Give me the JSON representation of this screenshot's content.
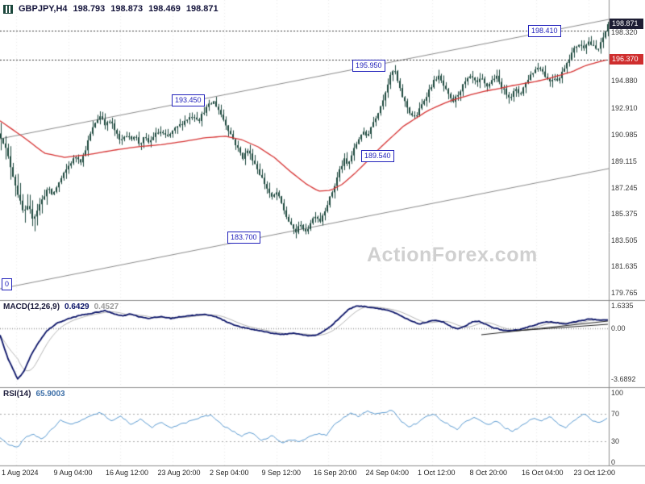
{
  "header": {
    "symbol": "GBPJPY,H4",
    "values": [
      "198.793",
      "198.873",
      "198.469",
      "198.871"
    ]
  },
  "watermark": "ActionForex.com",
  "price_axis": {
    "current_price": "198.871",
    "ma_price": "196.370"
  },
  "indicators": {
    "macd": {
      "label": "MACD(12,26,9)",
      "values": [
        "0.6429",
        "0.4527"
      ],
      "axis": [
        "1.6335",
        "0.00",
        "-3.6892"
      ]
    },
    "rsi": {
      "label": "RSI(14)",
      "value": "65.9003",
      "axis": [
        "100",
        "70",
        "30",
        "0"
      ]
    }
  },
  "time_axis": {
    "labels": [
      "1 Aug 2024",
      "9 Aug 04:00",
      "16 Aug 12:00",
      "23 Aug 20:00",
      "2 Sep 04:00",
      "9 Sep 12:00",
      "16 Sep 20:00",
      "24 Sep 04:00",
      "1 Oct 12:00",
      "8 Oct 20:00",
      "16 Oct 04:00",
      "23 Oct 12:00"
    ]
  },
  "colors": {
    "candle": "#1b473c",
    "ma_line": "#d63333",
    "macd_main": "#0b1468",
    "macd_signal": "#b5b5b5",
    "rsi_line": "#5c9bd1",
    "annotation_blue": "#2222bb",
    "current_price_box_bg": "#1d1d33",
    "ma_price_box_bg": "#cf2e2e",
    "watermark": "#c8c8c8",
    "channel": "#8a8a8a"
  },
  "chart_data": {
    "type": "candlestick",
    "title": "GBPJPY H4 with MACD(12,26,9) and RSI(14)",
    "symbol": "GBPJPY",
    "timeframe": "H4",
    "ohlc_current": {
      "open": 198.793,
      "high": 198.873,
      "low": 198.469,
      "close": 198.871
    },
    "last_close": 198.871,
    "ylim": [
      179.0,
      199.3
    ],
    "price_axis": {
      "grid_labels": [
        "198.320",
        "194.880",
        "192.910",
        "190.985",
        "189.115",
        "187.245",
        "185.375",
        "183.505",
        "181.635",
        "179.765"
      ]
    },
    "level_lines": [
      198.41,
      196.37
    ],
    "annotations": [
      {
        "text": "198.410",
        "x": 655,
        "price": 198.41
      },
      {
        "text": "195.950",
        "x": 437,
        "price": 195.95
      },
      {
        "text": "193.450",
        "x": 213,
        "price": 193.45
      },
      {
        "text": "189.540",
        "x": 448,
        "price": 189.54
      },
      {
        "text": "183.700",
        "x": 282,
        "price": 183.7
      },
      {
        "text": "0",
        "x": 2,
        "price": 180.38
      }
    ],
    "channel": {
      "upper_start_price": 190.72,
      "upper_end_price": 199.21,
      "lower_start_price": 180.05,
      "lower_end_price": 188.6
    },
    "close_path": [
      [
        0,
        191.1
      ],
      [
        6,
        190.4
      ],
      [
        12,
        189.2
      ],
      [
        18,
        187.9
      ],
      [
        24,
        186.6
      ],
      [
        30,
        185.4
      ],
      [
        36,
        185.9
      ],
      [
        42,
        185.0
      ],
      [
        48,
        185.8
      ],
      [
        54,
        186.5
      ],
      [
        60,
        187.2
      ],
      [
        66,
        186.7
      ],
      [
        72,
        187.4
      ],
      [
        80,
        188.2
      ],
      [
        88,
        189.0
      ],
      [
        96,
        189.5
      ],
      [
        102,
        189.1
      ],
      [
        108,
        190.2
      ],
      [
        114,
        191.2
      ],
      [
        120,
        192.0
      ],
      [
        126,
        192.4
      ],
      [
        132,
        191.7
      ],
      [
        138,
        192.0
      ],
      [
        144,
        191.2
      ],
      [
        150,
        190.5
      ],
      [
        156,
        191.1
      ],
      [
        162,
        190.7
      ],
      [
        168,
        191.0
      ],
      [
        174,
        190.3
      ],
      [
        180,
        190.8
      ],
      [
        186,
        190.4
      ],
      [
        192,
        191.0
      ],
      [
        200,
        191.2
      ],
      [
        208,
        190.8
      ],
      [
        216,
        191.3
      ],
      [
        224,
        191.7
      ],
      [
        232,
        192.1
      ],
      [
        240,
        192.4
      ],
      [
        248,
        192.1
      ],
      [
        254,
        192.7
      ],
      [
        260,
        193.1
      ],
      [
        266,
        193.35
      ],
      [
        272,
        192.8
      ],
      [
        278,
        192.1
      ],
      [
        284,
        191.4
      ],
      [
        290,
        190.7
      ],
      [
        296,
        190.0
      ],
      [
        302,
        189.4
      ],
      [
        308,
        189.9
      ],
      [
        314,
        189.3
      ],
      [
        320,
        188.6
      ],
      [
        326,
        187.9
      ],
      [
        332,
        187.2
      ],
      [
        338,
        186.5
      ],
      [
        344,
        186.9
      ],
      [
        350,
        186.1
      ],
      [
        356,
        185.2
      ],
      [
        362,
        184.5
      ],
      [
        368,
        184.1
      ],
      [
        374,
        184.7
      ],
      [
        380,
        184.0
      ],
      [
        386,
        184.8
      ],
      [
        392,
        185.3
      ],
      [
        398,
        184.9
      ],
      [
        404,
        185.7
      ],
      [
        410,
        186.5
      ],
      [
        416,
        187.4
      ],
      [
        422,
        188.5
      ],
      [
        428,
        189.2
      ],
      [
        432,
        188.8
      ],
      [
        438,
        189.7
      ],
      [
        444,
        190.5
      ],
      [
        450,
        191.2
      ],
      [
        456,
        190.9
      ],
      [
        462,
        191.7
      ],
      [
        468,
        192.4
      ],
      [
        474,
        193.2
      ],
      [
        480,
        194.3
      ],
      [
        486,
        195.3
      ],
      [
        490,
        195.7
      ],
      [
        494,
        194.8
      ],
      [
        498,
        194.0
      ],
      [
        504,
        193.2
      ],
      [
        510,
        192.5
      ],
      [
        516,
        192.2
      ],
      [
        522,
        192.9
      ],
      [
        528,
        193.6
      ],
      [
        534,
        194.3
      ],
      [
        540,
        194.9
      ],
      [
        544,
        195.2
      ],
      [
        550,
        194.6
      ],
      [
        556,
        193.9
      ],
      [
        562,
        193.3
      ],
      [
        568,
        193.8
      ],
      [
        574,
        194.4
      ],
      [
        580,
        194.9
      ],
      [
        586,
        195.1
      ],
      [
        592,
        194.6
      ],
      [
        598,
        195.0
      ],
      [
        604,
        194.4
      ],
      [
        610,
        194.8
      ],
      [
        616,
        195.2
      ],
      [
        622,
        194.5
      ],
      [
        628,
        194.0
      ],
      [
        634,
        193.7
      ],
      [
        640,
        194.2
      ],
      [
        646,
        193.9
      ],
      [
        652,
        194.6
      ],
      [
        658,
        195.2
      ],
      [
        664,
        195.6
      ],
      [
        670,
        195.9
      ],
      [
        676,
        195.3
      ],
      [
        682,
        194.8
      ],
      [
        688,
        195.1
      ],
      [
        694,
        194.9
      ],
      [
        700,
        195.7
      ],
      [
        706,
        196.4
      ],
      [
        712,
        197.0
      ],
      [
        718,
        197.5
      ],
      [
        724,
        197.2
      ],
      [
        730,
        197.7
      ],
      [
        736,
        197.3
      ],
      [
        742,
        197.0
      ],
      [
        747,
        197.6
      ],
      [
        751,
        198.2
      ],
      [
        755,
        198.87
      ]
    ],
    "ma_path": [
      [
        0,
        192.0
      ],
      [
        30,
        190.8
      ],
      [
        55,
        189.7
      ],
      [
        80,
        189.4
      ],
      [
        110,
        189.6
      ],
      [
        140,
        189.9
      ],
      [
        170,
        190.15
      ],
      [
        200,
        190.3
      ],
      [
        230,
        190.55
      ],
      [
        255,
        190.8
      ],
      [
        280,
        190.9
      ],
      [
        300,
        190.65
      ],
      [
        320,
        190.15
      ],
      [
        340,
        189.4
      ],
      [
        360,
        188.4
      ],
      [
        380,
        187.5
      ],
      [
        395,
        187.0
      ],
      [
        410,
        187.05
      ],
      [
        425,
        187.5
      ],
      [
        440,
        188.25
      ],
      [
        455,
        189.1
      ],
      [
        470,
        190.0
      ],
      [
        485,
        190.8
      ],
      [
        500,
        191.6
      ],
      [
        515,
        192.15
      ],
      [
        530,
        192.7
      ],
      [
        545,
        193.1
      ],
      [
        560,
        193.45
      ],
      [
        575,
        193.7
      ],
      [
        590,
        193.95
      ],
      [
        605,
        194.15
      ],
      [
        620,
        194.3
      ],
      [
        635,
        194.5
      ],
      [
        650,
        194.65
      ],
      [
        665,
        194.8
      ],
      [
        680,
        195.0
      ],
      [
        695,
        195.25
      ],
      [
        710,
        195.5
      ],
      [
        725,
        195.9
      ],
      [
        740,
        196.15
      ],
      [
        755,
        196.37
      ]
    ],
    "macd": {
      "path": [
        [
          0,
          -0.5
        ],
        [
          10,
          -2.2
        ],
        [
          22,
          -3.69
        ],
        [
          30,
          -3.1
        ],
        [
          38,
          -2.0
        ],
        [
          48,
          -1.0
        ],
        [
          58,
          -0.2
        ],
        [
          70,
          0.35
        ],
        [
          85,
          0.7
        ],
        [
          100,
          0.95
        ],
        [
          115,
          1.1
        ],
        [
          130,
          1.28
        ],
        [
          142,
          1.05
        ],
        [
          152,
          0.9
        ],
        [
          162,
          1.05
        ],
        [
          172,
          0.85
        ],
        [
          185,
          0.72
        ],
        [
          200,
          0.85
        ],
        [
          212,
          0.72
        ],
        [
          225,
          0.85
        ],
        [
          240,
          0.95
        ],
        [
          255,
          1.0
        ],
        [
          268,
          0.85
        ],
        [
          280,
          0.5
        ],
        [
          295,
          0.15
        ],
        [
          310,
          -0.05
        ],
        [
          325,
          -0.2
        ],
        [
          340,
          -0.38
        ],
        [
          352,
          -0.45
        ],
        [
          362,
          -0.35
        ],
        [
          372,
          -0.42
        ],
        [
          382,
          -0.55
        ],
        [
          392,
          -0.5
        ],
        [
          402,
          -0.2
        ],
        [
          412,
          0.25
        ],
        [
          422,
          0.8
        ],
        [
          432,
          1.35
        ],
        [
          442,
          1.63
        ],
        [
          452,
          1.58
        ],
        [
          462,
          1.5
        ],
        [
          472,
          1.42
        ],
        [
          482,
          1.3
        ],
        [
          492,
          1.05
        ],
        [
          502,
          0.75
        ],
        [
          512,
          0.48
        ],
        [
          520,
          0.32
        ],
        [
          530,
          0.45
        ],
        [
          540,
          0.6
        ],
        [
          550,
          0.45
        ],
        [
          560,
          0.1
        ],
        [
          568,
          -0.05
        ],
        [
          576,
          0.12
        ],
        [
          585,
          0.45
        ],
        [
          594,
          0.5
        ],
        [
          602,
          0.3
        ],
        [
          612,
          0.05
        ],
        [
          622,
          -0.12
        ],
        [
          632,
          -0.2
        ],
        [
          642,
          -0.12
        ],
        [
          652,
          0.05
        ],
        [
          662,
          0.22
        ],
        [
          672,
          0.4
        ],
        [
          682,
          0.48
        ],
        [
          692,
          0.4
        ],
        [
          702,
          0.32
        ],
        [
          712,
          0.45
        ],
        [
          722,
          0.58
        ],
        [
          732,
          0.68
        ],
        [
          742,
          0.6
        ],
        [
          750,
          0.58
        ],
        [
          755,
          0.6429
        ]
      ]
    },
    "rsi": {
      "path": [
        [
          0,
          35
        ],
        [
          12,
          24
        ],
        [
          22,
          22
        ],
        [
          32,
          36
        ],
        [
          42,
          40
        ],
        [
          52,
          33
        ],
        [
          62,
          45
        ],
        [
          75,
          60
        ],
        [
          88,
          54
        ],
        [
          100,
          60
        ],
        [
          112,
          66
        ],
        [
          125,
          72
        ],
        [
          138,
          59
        ],
        [
          150,
          66
        ],
        [
          162,
          55
        ],
        [
          175,
          62
        ],
        [
          188,
          50
        ],
        [
          200,
          57
        ],
        [
          212,
          50
        ],
        [
          225,
          55
        ],
        [
          238,
          60
        ],
        [
          250,
          65
        ],
        [
          262,
          68
        ],
        [
          275,
          54
        ],
        [
          288,
          45
        ],
        [
          300,
          38
        ],
        [
          312,
          43
        ],
        [
          325,
          31
        ],
        [
          338,
          39
        ],
        [
          350,
          28
        ],
        [
          362,
          33
        ],
        [
          372,
          29
        ],
        [
          382,
          36
        ],
        [
          395,
          42
        ],
        [
          405,
          38
        ],
        [
          415,
          55
        ],
        [
          425,
          63
        ],
        [
          435,
          71
        ],
        [
          445,
          66
        ],
        [
          455,
          74
        ],
        [
          465,
          69
        ],
        [
          478,
          72
        ],
        [
          487,
          76
        ],
        [
          497,
          60
        ],
        [
          507,
          51
        ],
        [
          517,
          56
        ],
        [
          527,
          64
        ],
        [
          537,
          70
        ],
        [
          547,
          61
        ],
        [
          557,
          54
        ],
        [
          567,
          48
        ],
        [
          577,
          58
        ],
        [
          587,
          65
        ],
        [
          597,
          59
        ],
        [
          607,
          54
        ],
        [
          617,
          60
        ],
        [
          627,
          49
        ],
        [
          637,
          45
        ],
        [
          650,
          55
        ],
        [
          662,
          64
        ],
        [
          672,
          59
        ],
        [
          682,
          67
        ],
        [
          692,
          55
        ],
        [
          702,
          50
        ],
        [
          714,
          62
        ],
        [
          725,
          70
        ],
        [
          735,
          59
        ],
        [
          744,
          57
        ],
        [
          755,
          65.9
        ]
      ]
    }
  }
}
